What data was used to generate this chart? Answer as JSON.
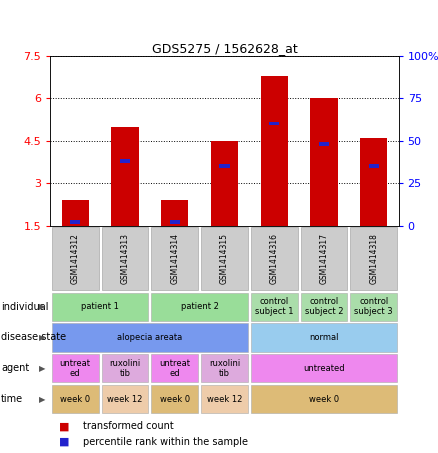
{
  "title": "GDS5275 / 1562628_at",
  "samples": [
    "GSM1414312",
    "GSM1414313",
    "GSM1414314",
    "GSM1414315",
    "GSM1414316",
    "GSM1414317",
    "GSM1414318"
  ],
  "red_values": [
    2.4,
    5.0,
    2.4,
    4.5,
    6.8,
    6.0,
    4.6
  ],
  "blue_values": [
    2.0,
    38.0,
    2.0,
    35.0,
    60.0,
    48.0,
    35.0
  ],
  "ylim_left": [
    1.5,
    7.5
  ],
  "ylim_right": [
    0,
    100
  ],
  "yticks_left": [
    1.5,
    3.0,
    4.5,
    6.0,
    7.5
  ],
  "ytick_labels_left": [
    "1.5",
    "3",
    "4.5",
    "6",
    "7.5"
  ],
  "ytick_labels_right": [
    "0",
    "25",
    "50",
    "75",
    "100%"
  ],
  "yticks_right": [
    0,
    25,
    50,
    75,
    100
  ],
  "bar_color_red": "#cc0000",
  "bar_color_blue": "#2222cc",
  "individual_row": {
    "label": "individual",
    "groups": [
      {
        "text": "patient 1",
        "cols": [
          0,
          1
        ],
        "color": "#99dd99"
      },
      {
        "text": "patient 2",
        "cols": [
          2,
          3
        ],
        "color": "#99dd99"
      },
      {
        "text": "control\nsubject 1",
        "cols": [
          4
        ],
        "color": "#aaddaa"
      },
      {
        "text": "control\nsubject 2",
        "cols": [
          5
        ],
        "color": "#aaddaa"
      },
      {
        "text": "control\nsubject 3",
        "cols": [
          6
        ],
        "color": "#aaddaa"
      }
    ]
  },
  "disease_row": {
    "label": "disease state",
    "groups": [
      {
        "text": "alopecia areata",
        "cols": [
          0,
          1,
          2,
          3
        ],
        "color": "#7799ee"
      },
      {
        "text": "normal",
        "cols": [
          4,
          5,
          6
        ],
        "color": "#99ccee"
      }
    ]
  },
  "agent_row": {
    "label": "agent",
    "groups": [
      {
        "text": "untreat\ned",
        "cols": [
          0
        ],
        "color": "#ee88ee"
      },
      {
        "text": "ruxolini\ntib",
        "cols": [
          1
        ],
        "color": "#ddaadd"
      },
      {
        "text": "untreat\ned",
        "cols": [
          2
        ],
        "color": "#ee88ee"
      },
      {
        "text": "ruxolini\ntib",
        "cols": [
          3
        ],
        "color": "#ddaadd"
      },
      {
        "text": "untreated",
        "cols": [
          4,
          5,
          6
        ],
        "color": "#ee88ee"
      }
    ]
  },
  "time_row": {
    "label": "time",
    "groups": [
      {
        "text": "week 0",
        "cols": [
          0
        ],
        "color": "#ddbb77"
      },
      {
        "text": "week 12",
        "cols": [
          1
        ],
        "color": "#eeccaa"
      },
      {
        "text": "week 0",
        "cols": [
          2
        ],
        "color": "#ddbb77"
      },
      {
        "text": "week 12",
        "cols": [
          3
        ],
        "color": "#eeccaa"
      },
      {
        "text": "week 0",
        "cols": [
          4,
          5,
          6
        ],
        "color": "#ddbb77"
      }
    ]
  },
  "legend_items": [
    {
      "color": "#cc0000",
      "label": "transformed count"
    },
    {
      "color": "#2222cc",
      "label": "percentile rank within the sample"
    }
  ]
}
